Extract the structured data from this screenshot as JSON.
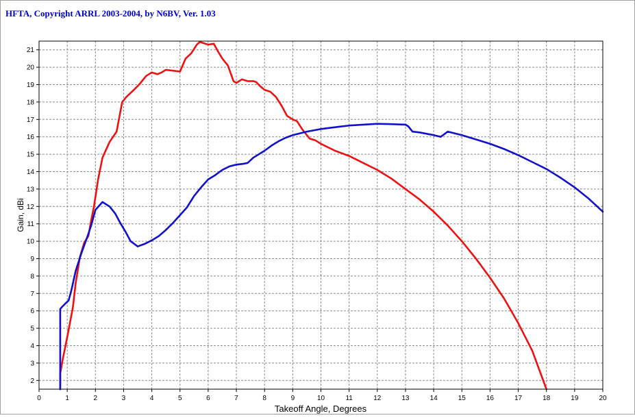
{
  "window": {
    "title": "HFTA, Copyright ARRL 2003-2004, by N6BV, Ver. 1.03"
  },
  "chart_data": {
    "type": "line",
    "title": "",
    "xlabel": "Takeoff Angle, Degrees",
    "ylabel": "Gain, dBi",
    "xlim": [
      0,
      20
    ],
    "ylim": [
      1.5,
      21.5
    ],
    "xticks": [
      0,
      1,
      2,
      3,
      4,
      5,
      6,
      7,
      8,
      9,
      10,
      11,
      12,
      13,
      14,
      15,
      16,
      17,
      18,
      19,
      20
    ],
    "yticks": [
      2,
      3,
      4,
      5,
      6,
      7,
      8,
      9,
      10,
      11,
      12,
      13,
      14,
      15,
      16,
      17,
      18,
      19,
      20,
      21
    ],
    "grid": true,
    "legend": "none",
    "series": [
      {
        "color": "#ee1111",
        "points": [
          [
            0.75,
            1.5
          ],
          [
            0.75,
            2.4
          ],
          [
            0.85,
            3.3
          ],
          [
            1.0,
            4.5
          ],
          [
            1.2,
            6.2
          ],
          [
            1.3,
            7.6
          ],
          [
            1.45,
            9.1
          ],
          [
            1.6,
            9.9
          ],
          [
            1.75,
            10.3
          ],
          [
            1.85,
            11.2
          ],
          [
            1.95,
            12.0
          ],
          [
            2.1,
            13.6
          ],
          [
            2.25,
            14.8
          ],
          [
            2.5,
            15.7
          ],
          [
            2.75,
            16.3
          ],
          [
            2.95,
            18.0
          ],
          [
            3.1,
            18.3
          ],
          [
            3.3,
            18.6
          ],
          [
            3.55,
            19.0
          ],
          [
            3.8,
            19.5
          ],
          [
            4.0,
            19.7
          ],
          [
            4.2,
            19.6
          ],
          [
            4.35,
            19.7
          ],
          [
            4.5,
            19.85
          ],
          [
            4.75,
            19.8
          ],
          [
            5.0,
            19.75
          ],
          [
            5.2,
            20.5
          ],
          [
            5.4,
            20.8
          ],
          [
            5.6,
            21.3
          ],
          [
            5.7,
            21.45
          ],
          [
            5.8,
            21.4
          ],
          [
            6.0,
            21.3
          ],
          [
            6.2,
            21.35
          ],
          [
            6.35,
            20.9
          ],
          [
            6.5,
            20.5
          ],
          [
            6.7,
            20.1
          ],
          [
            6.9,
            19.2
          ],
          [
            7.0,
            19.1
          ],
          [
            7.2,
            19.3
          ],
          [
            7.4,
            19.2
          ],
          [
            7.6,
            19.2
          ],
          [
            7.7,
            19.15
          ],
          [
            7.85,
            18.9
          ],
          [
            8.0,
            18.7
          ],
          [
            8.2,
            18.6
          ],
          [
            8.4,
            18.3
          ],
          [
            8.6,
            17.8
          ],
          [
            8.8,
            17.2
          ],
          [
            9.0,
            17.0
          ],
          [
            9.15,
            16.9
          ],
          [
            9.35,
            16.4
          ],
          [
            9.6,
            15.9
          ],
          [
            9.8,
            15.8
          ],
          [
            10.0,
            15.6
          ],
          [
            10.5,
            15.2
          ],
          [
            11.0,
            14.9
          ],
          [
            11.5,
            14.5
          ],
          [
            12.0,
            14.1
          ],
          [
            12.5,
            13.6
          ],
          [
            13.0,
            13.0
          ],
          [
            13.5,
            12.4
          ],
          [
            14.0,
            11.7
          ],
          [
            14.5,
            10.9
          ],
          [
            15.0,
            10.0
          ],
          [
            15.5,
            9.0
          ],
          [
            16.0,
            7.9
          ],
          [
            16.5,
            6.7
          ],
          [
            17.0,
            5.3
          ],
          [
            17.5,
            3.7
          ],
          [
            18.0,
            1.5
          ]
        ]
      },
      {
        "color": "#1111cc",
        "points": [
          [
            0.75,
            1.5
          ],
          [
            0.75,
            6.1
          ],
          [
            0.8,
            6.2
          ],
          [
            0.95,
            6.45
          ],
          [
            1.05,
            6.6
          ],
          [
            1.15,
            7.2
          ],
          [
            1.3,
            8.3
          ],
          [
            1.5,
            9.3
          ],
          [
            1.7,
            10.2
          ],
          [
            1.85,
            10.9
          ],
          [
            2.0,
            11.8
          ],
          [
            2.25,
            12.25
          ],
          [
            2.5,
            12.0
          ],
          [
            2.7,
            11.6
          ],
          [
            2.9,
            11.0
          ],
          [
            3.05,
            10.6
          ],
          [
            3.25,
            10.0
          ],
          [
            3.5,
            9.7
          ],
          [
            3.75,
            9.85
          ],
          [
            4.0,
            10.05
          ],
          [
            4.25,
            10.3
          ],
          [
            4.5,
            10.65
          ],
          [
            4.75,
            11.05
          ],
          [
            5.0,
            11.5
          ],
          [
            5.25,
            11.95
          ],
          [
            5.5,
            12.6
          ],
          [
            5.75,
            13.1
          ],
          [
            6.0,
            13.55
          ],
          [
            6.25,
            13.8
          ],
          [
            6.5,
            14.1
          ],
          [
            6.75,
            14.3
          ],
          [
            7.0,
            14.4
          ],
          [
            7.25,
            14.45
          ],
          [
            7.4,
            14.5
          ],
          [
            7.6,
            14.8
          ],
          [
            8.0,
            15.2
          ],
          [
            8.25,
            15.5
          ],
          [
            8.5,
            15.75
          ],
          [
            8.75,
            15.95
          ],
          [
            9.0,
            16.1
          ],
          [
            9.5,
            16.3
          ],
          [
            10.0,
            16.45
          ],
          [
            10.5,
            16.55
          ],
          [
            11.0,
            16.65
          ],
          [
            11.5,
            16.7
          ],
          [
            12.0,
            16.75
          ],
          [
            12.5,
            16.73
          ],
          [
            13.0,
            16.7
          ],
          [
            13.1,
            16.6
          ],
          [
            13.25,
            16.3
          ],
          [
            13.5,
            16.25
          ],
          [
            14.0,
            16.1
          ],
          [
            14.25,
            16.0
          ],
          [
            14.5,
            16.3
          ],
          [
            15.0,
            16.1
          ],
          [
            15.5,
            15.85
          ],
          [
            16.0,
            15.6
          ],
          [
            16.5,
            15.3
          ],
          [
            17.0,
            14.95
          ],
          [
            17.5,
            14.55
          ],
          [
            18.0,
            14.15
          ],
          [
            18.5,
            13.65
          ],
          [
            19.0,
            13.1
          ],
          [
            19.5,
            12.45
          ],
          [
            20.0,
            11.7
          ]
        ]
      }
    ]
  }
}
